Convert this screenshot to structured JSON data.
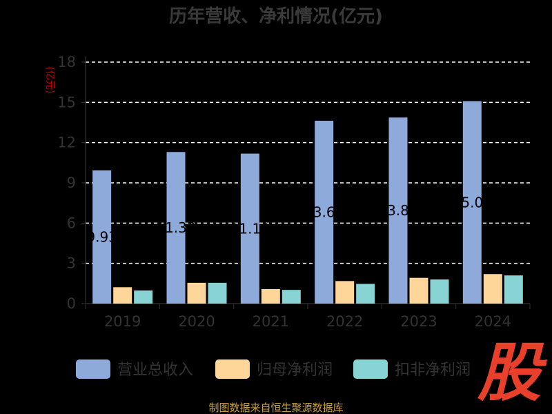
{
  "chart_data": {
    "type": "bar",
    "title": "历年营收、净利情况(亿元)",
    "ylabel": "(亿元)",
    "xlabel": "",
    "categories": [
      "2019",
      "2020",
      "2021",
      "2022",
      "2023",
      "2024"
    ],
    "ylim": [
      0,
      18
    ],
    "yticks": [
      0,
      3,
      6,
      9,
      12,
      15,
      18
    ],
    "grid": true,
    "legend": "bottom",
    "series": [
      {
        "name": "营业总收入",
        "color": "#8eaadb",
        "values": [
          9.93,
          11.3,
          11.18,
          13.63,
          13.87,
          15.09
        ],
        "labels": [
          "9.93",
          "11.30",
          "11.18",
          "13.63",
          "13.87",
          "15.09"
        ]
      },
      {
        "name": "归母净利润",
        "color": "#ffd699",
        "values": [
          1.22,
          1.55,
          1.08,
          1.68,
          1.92,
          2.2
        ]
      },
      {
        "name": "扣非净利润",
        "color": "#88d4d4",
        "values": [
          0.98,
          1.55,
          1.02,
          1.47,
          1.8,
          2.1
        ]
      }
    ]
  },
  "source": "制图数据来自恒生聚源数据库",
  "logo": "股"
}
